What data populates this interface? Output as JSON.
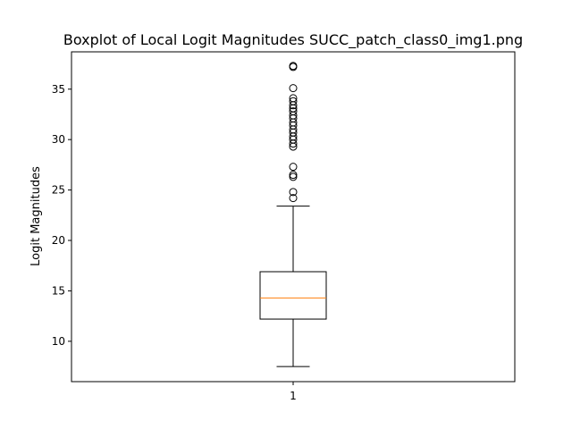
{
  "chart_data": {
    "type": "boxplot",
    "title": "Boxplot of Local Logit Magnitudes SUCC_patch_class0_img1.png",
    "xlabel": "",
    "ylabel": "Logit Magnitudes",
    "categories": [
      "1"
    ],
    "ylim": [
      6.0,
      38.7
    ],
    "yticks": [
      10,
      15,
      20,
      25,
      30,
      35
    ],
    "grid": false,
    "box": {
      "whisker_low": 7.5,
      "q1": 12.2,
      "median": 14.3,
      "q3": 16.9,
      "whisker_high": 23.4
    },
    "outliers": [
      24.2,
      24.8,
      26.3,
      26.5,
      27.3,
      29.3,
      29.6,
      30.0,
      30.3,
      30.7,
      31.0,
      31.4,
      31.7,
      32.1,
      32.4,
      32.8,
      33.1,
      33.4,
      33.8,
      34.1,
      35.1,
      37.2,
      37.3
    ],
    "colors": {
      "box": "#000000",
      "median": "#ff7f0e",
      "outlier_edge": "#000000"
    }
  }
}
